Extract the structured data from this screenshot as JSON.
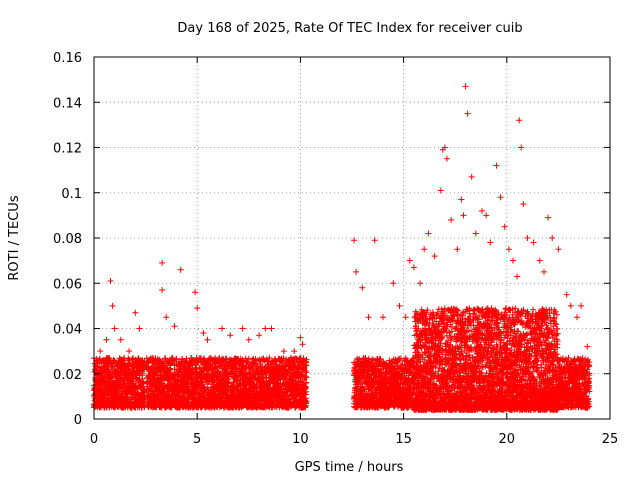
{
  "chart_data": {
    "type": "scatter",
    "title": "Day 168 of 2025, Rate Of TEC Index for receiver cuib",
    "xlabel": "GPS time / hours",
    "ylabel": "ROTI / TECUs",
    "xlim": [
      0,
      25
    ],
    "ylim": [
      0,
      0.16
    ],
    "xticks": [
      0,
      5,
      10,
      15,
      20,
      25
    ],
    "yticks": [
      0,
      0.02,
      0.04,
      0.06,
      0.08,
      0.1,
      0.12,
      0.14,
      0.16
    ],
    "xtick_labels": [
      "0",
      "5",
      "10",
      "15",
      "20",
      "25"
    ],
    "ytick_labels": [
      "0",
      "0.02",
      "0.04",
      "0.06",
      "0.08",
      "0.1",
      "0.12",
      "0.14",
      "0.16"
    ],
    "grid": true,
    "marker": "+",
    "marker_color": "#ff0000",
    "data_gaps_hours": [
      [
        2.45,
        2.55
      ],
      [
        10.3,
        12.6
      ]
    ],
    "series": [
      {
        "name": "ROTI",
        "x": [
          0.3,
          0.6,
          0.8,
          0.9,
          1.0,
          1.3,
          1.7,
          2.0,
          2.2,
          3.3,
          3.3,
          3.5,
          3.9,
          4.2,
          4.9,
          5.0,
          5.3,
          5.5,
          6.2,
          6.6,
          7.2,
          7.5,
          8.0,
          8.3,
          8.6,
          9.2,
          9.7,
          10.0,
          10.1,
          12.6,
          12.7,
          13.0,
          13.3,
          13.6,
          14.0,
          14.5,
          14.8,
          15.1,
          15.3,
          15.5,
          15.8,
          16.0,
          16.2,
          16.5,
          16.8,
          16.9,
          17.0,
          17.1,
          17.3,
          17.6,
          17.8,
          17.9,
          18.0,
          18.1,
          18.3,
          18.5,
          18.8,
          19.0,
          19.2,
          19.5,
          19.7,
          19.9,
          20.1,
          20.3,
          20.5,
          20.6,
          20.7,
          20.8,
          21.0,
          21.3,
          21.6,
          21.8,
          22.0,
          22.2,
          22.5,
          22.9,
          23.1,
          23.4,
          23.6,
          23.9
        ],
        "y": [
          0.03,
          0.035,
          0.061,
          0.05,
          0.04,
          0.035,
          0.03,
          0.047,
          0.04,
          0.069,
          0.057,
          0.045,
          0.041,
          0.066,
          0.056,
          0.049,
          0.038,
          0.035,
          0.04,
          0.037,
          0.04,
          0.035,
          0.037,
          0.04,
          0.04,
          0.03,
          0.03,
          0.036,
          0.033,
          0.079,
          0.065,
          0.058,
          0.045,
          0.079,
          0.045,
          0.06,
          0.05,
          0.045,
          0.07,
          0.067,
          0.06,
          0.075,
          0.082,
          0.072,
          0.101,
          0.119,
          0.12,
          0.115,
          0.088,
          0.075,
          0.097,
          0.09,
          0.147,
          0.135,
          0.107,
          0.082,
          0.092,
          0.09,
          0.078,
          0.112,
          0.098,
          0.085,
          0.075,
          0.07,
          0.063,
          0.132,
          0.12,
          0.095,
          0.08,
          0.078,
          0.07,
          0.065,
          0.089,
          0.08,
          0.075,
          0.055,
          0.05,
          0.045,
          0.05,
          0.032
        ]
      }
    ]
  }
}
